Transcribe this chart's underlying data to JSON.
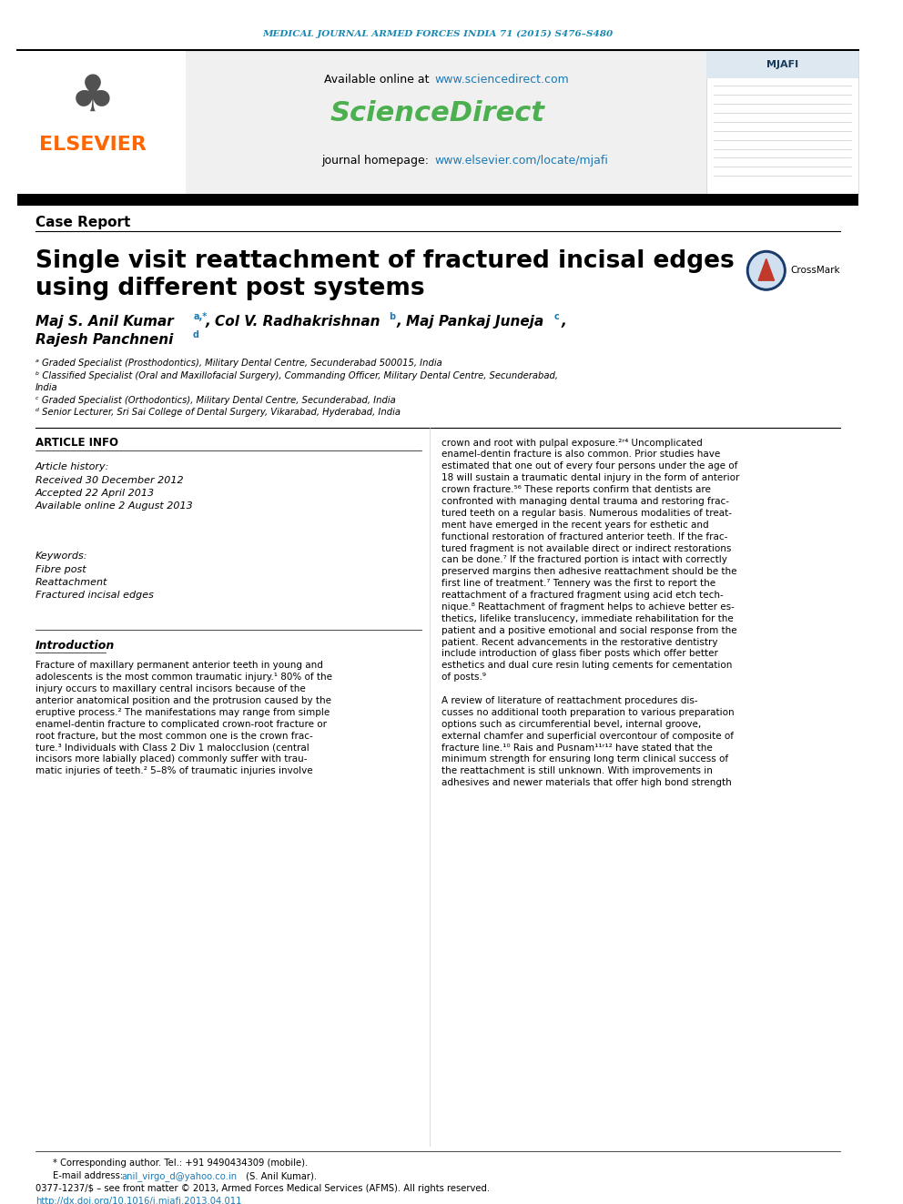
{
  "journal_header": "MEDICAL JOURNAL ARMED FORCES INDIA 71 (2015) S476–S480",
  "available_online": "Available online at ",
  "sciencedirect_url": "www.sciencedirect.com",
  "sciencedirect_text": "ScienceDirect",
  "journal_homepage": "journal homepage: ",
  "journal_url": "www.elsevier.com/locate/mjafi",
  "section_label": "Case Report",
  "title_line1": "Single visit reattachment of fractured incisal edges",
  "title_line2": "using different post systems",
  "affil_a": "ᵃ Graded Specialist (Prosthodontics), Military Dental Centre, Secunderabad 500015, India",
  "affil_b": "ᵇ Classified Specialist (Oral and Maxillofacial Surgery), Commanding Officer, Military Dental Centre, Secunderabad,",
  "affil_b2": "India",
  "affil_c": "ᶜ Graded Specialist (Orthodontics), Military Dental Centre, Secunderabad, India",
  "affil_d": "ᵈ Senior Lecturer, Sri Sai College of Dental Surgery, Vikarabad, Hyderabad, India",
  "article_info_title": "ARTICLE INFO",
  "article_history": "Article history:",
  "received": "Received 30 December 2012",
  "accepted": "Accepted 22 April 2013",
  "available": "Available online 2 August 2013",
  "keywords_title": "Keywords:",
  "keyword1": "Fibre post",
  "keyword2": "Reattachment",
  "keyword3": "Fractured incisal edges",
  "intro_title": "Introduction",
  "footer_note": "* Corresponding author. Tel.: +91 9490434309 (mobile).",
  "footer_email_pre": "E-mail address: ",
  "footer_email": "anil_virgo_d@yahoo.co.in",
  "footer_email_post": " (S. Anil Kumar).",
  "footer_rights": "0377-1237/$ – see front matter © 2013, Armed Forces Medical Services (AFMS). All rights reserved.",
  "footer_doi": "http://dx.doi.org/10.1016/j.mjafi.2013.04.011",
  "header_color": "#1a8ab5",
  "sciencedirect_color": "#4CAF50",
  "url_color": "#1a7ab5",
  "elsevier_color": "#FF6600",
  "intro_lines": [
    "Fracture of maxillary permanent anterior teeth in young and",
    "adolescents is the most common traumatic injury.¹ 80% of the",
    "injury occurs to maxillary central incisors because of the",
    "anterior anatomical position and the protrusion caused by the",
    "eruptive process.² The manifestations may range from simple",
    "enamel-dentin fracture to complicated crown-root fracture or",
    "root fracture, but the most common one is the crown frac-",
    "ture.³ Individuals with Class 2 Div 1 malocclusion (central",
    "incisors more labially placed) commonly suffer with trau-",
    "matic injuries of teeth.² 5–8% of traumatic injuries involve"
  ],
  "right_lines": [
    "crown and root with pulpal exposure.²ʳ⁴ Uncomplicated",
    "enamel-dentin fracture is also common. Prior studies have",
    "estimated that one out of every four persons under the age of",
    "18 will sustain a traumatic dental injury in the form of anterior",
    "crown fracture.⁵⁶ These reports confirm that dentists are",
    "confronted with managing dental trauma and restoring frac-",
    "tured teeth on a regular basis. Numerous modalities of treat-",
    "ment have emerged in the recent years for esthetic and",
    "functional restoration of fractured anterior teeth. If the frac-",
    "tured fragment is not available direct or indirect restorations",
    "can be done.⁷ If the fractured portion is intact with correctly",
    "preserved margins then adhesive reattachment should be the",
    "first line of treatment.⁷ Tennery was the first to report the",
    "reattachment of a fractured fragment using acid etch tech-",
    "nique.⁸ Reattachment of fragment helps to achieve better es-",
    "thetics, lifelike translucency, immediate rehabilitation for the",
    "patient and a positive emotional and social response from the",
    "patient. Recent advancements in the restorative dentistry",
    "include introduction of glass fiber posts which offer better",
    "esthetics and dual cure resin luting cements for cementation",
    "of posts.⁹",
    "",
    "A review of literature of reattachment procedures dis-",
    "cusses no additional tooth preparation to various preparation",
    "options such as circumferential bevel, internal groove,",
    "external chamfer and superficial overcontour of composite of",
    "fracture line.¹⁰ Rais and Pusnam¹¹ʳ¹² have stated that the",
    "minimum strength for ensuring long term clinical success of",
    "the reattachment is still unknown. With improvements in",
    "adhesives and newer materials that offer high bond strength"
  ]
}
